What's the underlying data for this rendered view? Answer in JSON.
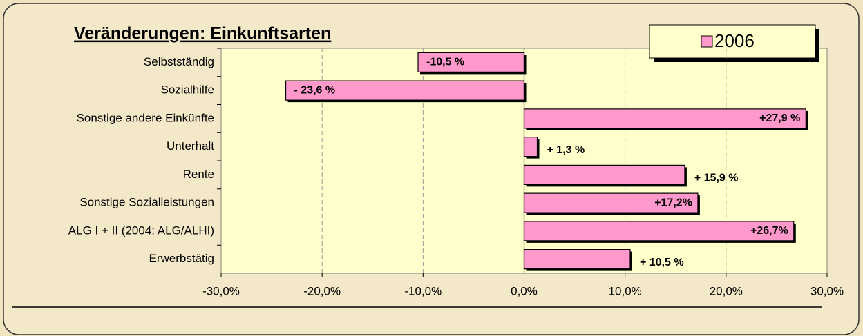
{
  "chart_data": {
    "type": "bar",
    "orientation": "horizontal",
    "title": "Veränderungen: Einkunftsarten",
    "categories": [
      "Selbstständig",
      "Sozialhilfe",
      "Sonstige andere Einkünfte",
      "Unterhalt",
      "Rente",
      "Sonstige Sozialleistungen",
      "ALG I + II (2004: ALG/ALHI)",
      "Erwerbstätig"
    ],
    "series": [
      {
        "name": "2006",
        "color": "#ff99cc",
        "values": [
          -10.5,
          -23.6,
          27.9,
          1.3,
          15.9,
          17.2,
          26.7,
          10.5
        ],
        "value_labels": [
          "-10,5 %",
          "- 23,6 %",
          "+27,9 %",
          "+ 1,3 %",
          "+ 15,9 %",
          "+17,2%",
          "+26,7%",
          "+ 10,5 %"
        ]
      }
    ],
    "xlim": [
      -30,
      30
    ],
    "xticks": [
      {
        "value": -30,
        "label": "-30,0%"
      },
      {
        "value": -20,
        "label": "-20,0%"
      },
      {
        "value": -10,
        "label": "-10,0%"
      },
      {
        "value": 0,
        "label": "0,0%"
      },
      {
        "value": 10,
        "label": "10,0%"
      },
      {
        "value": 20,
        "label": "20,0%"
      },
      {
        "value": 30,
        "label": "30,0%"
      }
    ],
    "grid": true,
    "legend": "top-right"
  }
}
